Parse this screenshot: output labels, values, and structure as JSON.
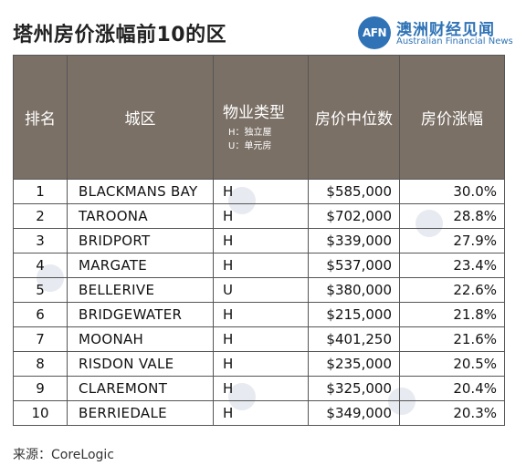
{
  "title": "塔州房价涨幅前10的区",
  "logo": {
    "mark": "AFN",
    "cn": "澳洲财经见闻",
    "en": "Australian Financial News",
    "color": "#2f73b6"
  },
  "table": {
    "headers": {
      "rank": "排名",
      "district": "城区",
      "type": "物业类型",
      "type_note_h": "H：独立屋",
      "type_note_u": "U：单元房",
      "price": "房价中位数",
      "growth": "房价涨幅"
    },
    "header_bg": "#7b7066",
    "rows": [
      {
        "rank": "1",
        "district": "BLACKMANS BAY",
        "type": "H",
        "price": "$585,000",
        "growth": "30.0%"
      },
      {
        "rank": "2",
        "district": "TAROONA",
        "type": "H",
        "price": "$702,000",
        "growth": "28.8%"
      },
      {
        "rank": "3",
        "district": "BRIDPORT",
        "type": "H",
        "price": "$339,000",
        "growth": "27.9%"
      },
      {
        "rank": "4",
        "district": "MARGATE",
        "type": "H",
        "price": "$537,000",
        "growth": "23.4%"
      },
      {
        "rank": "5",
        "district": "BELLERIVE",
        "type": "U",
        "price": "$380,000",
        "growth": "22.6%"
      },
      {
        "rank": "6",
        "district": "BRIDGEWATER",
        "type": "H",
        "price": "$215,000",
        "growth": "21.8%"
      },
      {
        "rank": "7",
        "district": "MOONAH",
        "type": "H",
        "price": "$401,250",
        "growth": "21.6%"
      },
      {
        "rank": "8",
        "district": "RISDON VALE",
        "type": "H",
        "price": "$235,000",
        "growth": "20.5%"
      },
      {
        "rank": "9",
        "district": "CLAREMONT",
        "type": "H",
        "price": "$325,000",
        "growth": "20.4%"
      },
      {
        "rank": "10",
        "district": "BERRIEDALE",
        "type": "H",
        "price": "$349,000",
        "growth": "20.3%"
      }
    ]
  },
  "source": "来源：CoreLogic"
}
